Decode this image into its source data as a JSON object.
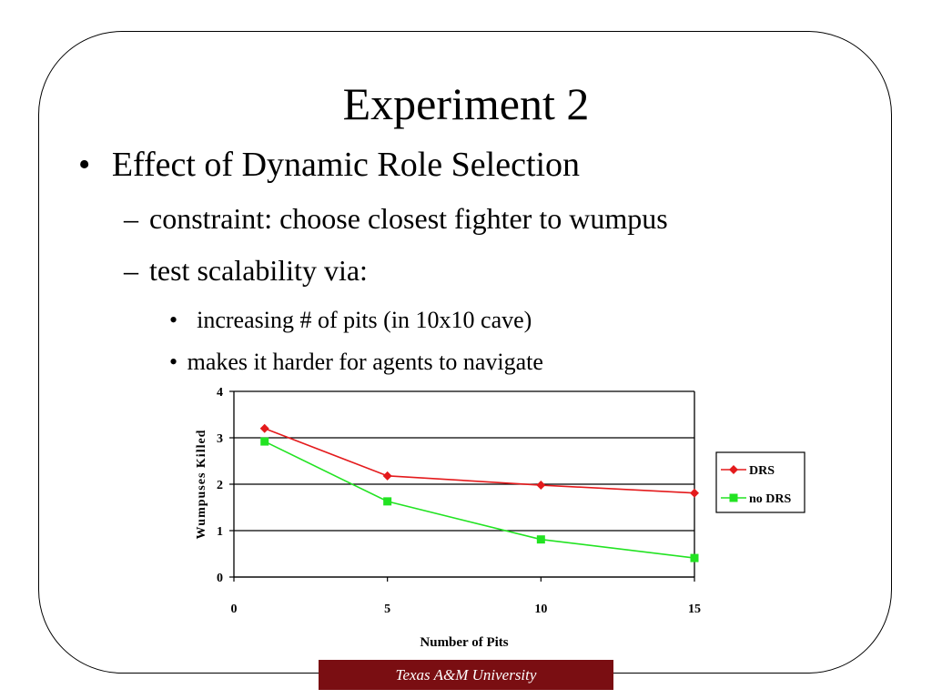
{
  "slide": {
    "title": "Experiment 2",
    "bullets": [
      {
        "marker": "•",
        "text": "Effect of Dynamic Role Selection"
      },
      {
        "marker": "–",
        "text": "constraint: choose closest fighter to wumpus"
      },
      {
        "marker": "–",
        "text": "test scalability via:"
      },
      {
        "marker": "•",
        "text": " increasing # of pits (in 10x10 cave)"
      },
      {
        "marker": "•",
        "text": "makes it harder for agents to navigate"
      }
    ],
    "footer": "Texas A&M University"
  },
  "colors": {
    "drs": "#e41a1c",
    "no_drs": "#22e322",
    "footer_bg": "#7a0e12",
    "grid": "#000000"
  },
  "chart_data": {
    "type": "line",
    "xlabel": "Number of Pits",
    "ylabel": "Wumpuses Killed",
    "xlim": [
      0,
      15
    ],
    "ylim": [
      0,
      4
    ],
    "xticks": [
      0,
      5,
      10,
      15
    ],
    "yticks": [
      0,
      1,
      2,
      3,
      4
    ],
    "grid": "horizontal",
    "legend_position": "right",
    "series": [
      {
        "name": "DRS",
        "marker": "diamond",
        "color": "#e41a1c",
        "x": [
          1,
          5,
          10,
          15
        ],
        "values": [
          3.2,
          2.18,
          1.98,
          1.81
        ]
      },
      {
        "name": "no DRS",
        "marker": "square",
        "color": "#22e322",
        "x": [
          1,
          5,
          10,
          15
        ],
        "values": [
          2.92,
          1.63,
          0.81,
          0.41
        ]
      }
    ]
  }
}
